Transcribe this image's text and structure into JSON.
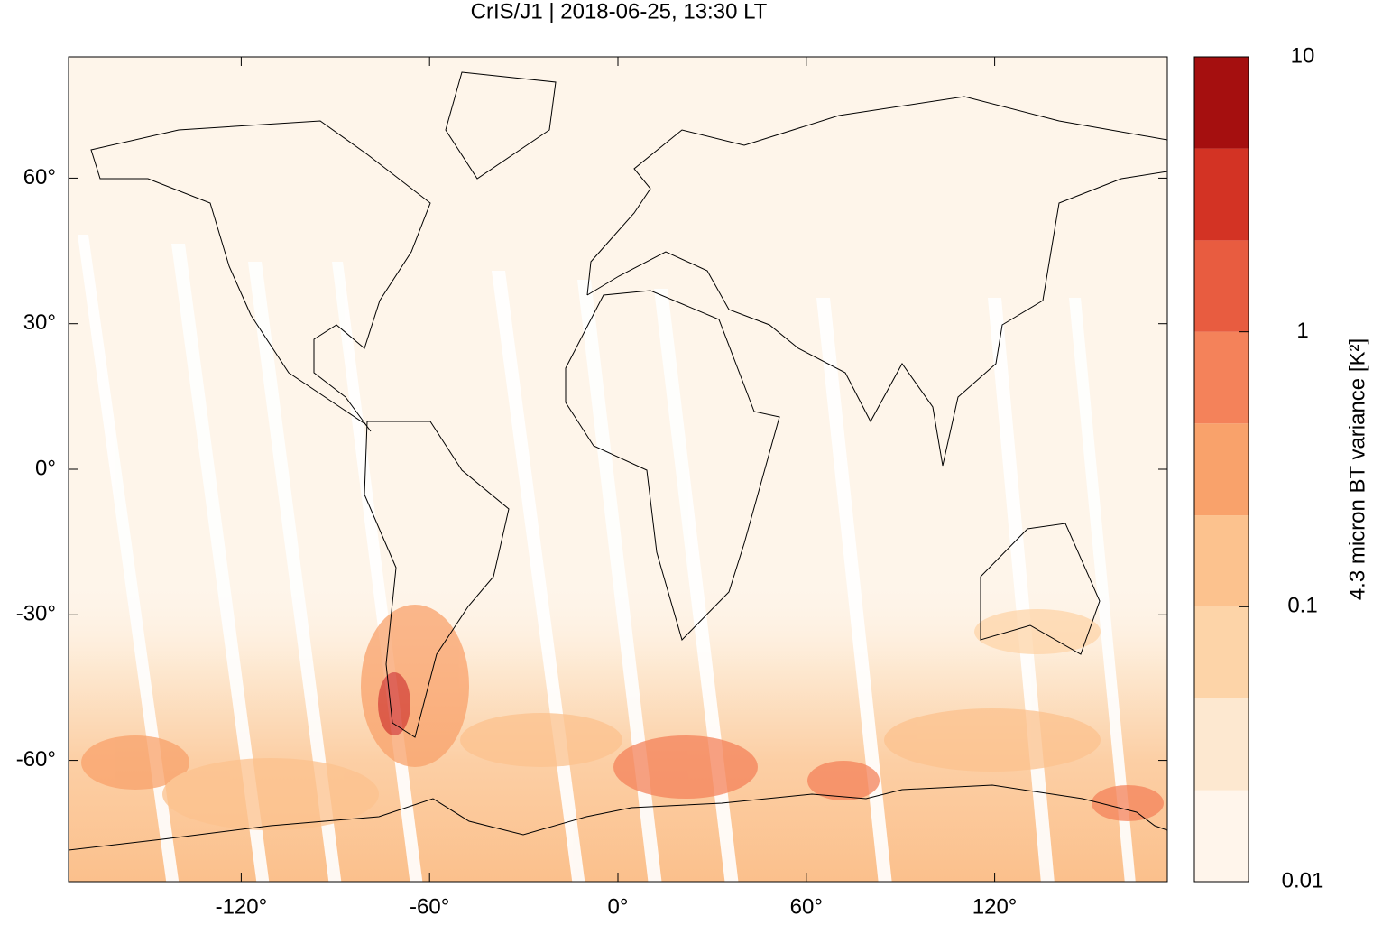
{
  "chart_data": {
    "type": "map",
    "title": "CrIS/J1 | 2018-06-25, 13:30 LT",
    "xlim": [
      -175,
      175
    ],
    "ylim": [
      -85,
      85
    ],
    "xticks": [
      {
        "value": -120,
        "label": "-120°"
      },
      {
        "value": -60,
        "label": "-60°"
      },
      {
        "value": 0,
        "label": "0°"
      },
      {
        "value": 60,
        "label": "60°"
      },
      {
        "value": 120,
        "label": "120°"
      }
    ],
    "yticks": [
      {
        "value": -60,
        "label": "-60°"
      },
      {
        "value": -30,
        "label": "-30°"
      },
      {
        "value": 0,
        "label": "0°"
      },
      {
        "value": 30,
        "label": "30°"
      },
      {
        "value": 60,
        "label": "60°"
      }
    ],
    "colorbar": {
      "label": "4.3 micron BT variance [K²]",
      "log": true,
      "clim": [
        0.01,
        10
      ],
      "levels": [
        0.01,
        0.0215,
        0.0464,
        0.1,
        0.215,
        0.464,
        1,
        2.15,
        4.64,
        10
      ],
      "colors": [
        "#fff5eb",
        "#fde8d0",
        "#fdd4a8",
        "#fcc28e",
        "#f9a26b",
        "#f4825a",
        "#e85c40",
        "#d33324",
        "#a50f0f"
      ],
      "ticks": [
        0.01,
        0.1,
        1,
        10
      ]
    }
  }
}
